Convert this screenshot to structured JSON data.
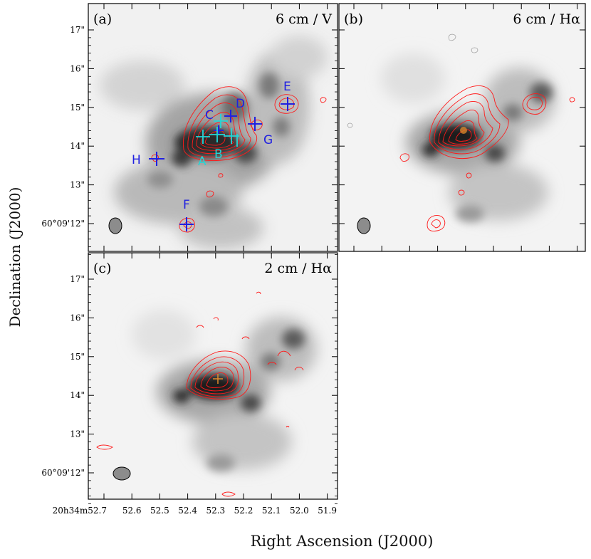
{
  "figure": {
    "y_axis_label": "Declination (J2000)",
    "x_axis_label": "Right Ascension (J2000)",
    "colors": {
      "contour": "#ff1a1a",
      "blue_marker": "#2020e0",
      "cyan_marker": "#22d8d8",
      "orange_marker": "#e08a2a",
      "frame": "#000000",
      "beam": "#8c8c8c"
    }
  },
  "axes": {
    "dec_ticks": [
      "17\"",
      "16\"",
      "15\"",
      "14\"",
      "13\"",
      "60°09'12\""
    ],
    "ra_ticks": [
      "20h34m52.7",
      "52.6",
      "52.5",
      "52.4",
      "52.3",
      "52.2",
      "52.1",
      "52.0",
      "51.9"
    ]
  },
  "panels": [
    {
      "id": "a",
      "label": "(a)",
      "title": "6 cm / V"
    },
    {
      "id": "b",
      "label": "(b)",
      "title": "6 cm / Hα"
    },
    {
      "id": "c",
      "label": "(c)",
      "title": "2 cm / Hα"
    }
  ],
  "sources": {
    "blue": [
      "C",
      "D",
      "E",
      "F",
      "G",
      "H"
    ],
    "cyan": [
      "A",
      "B"
    ]
  }
}
